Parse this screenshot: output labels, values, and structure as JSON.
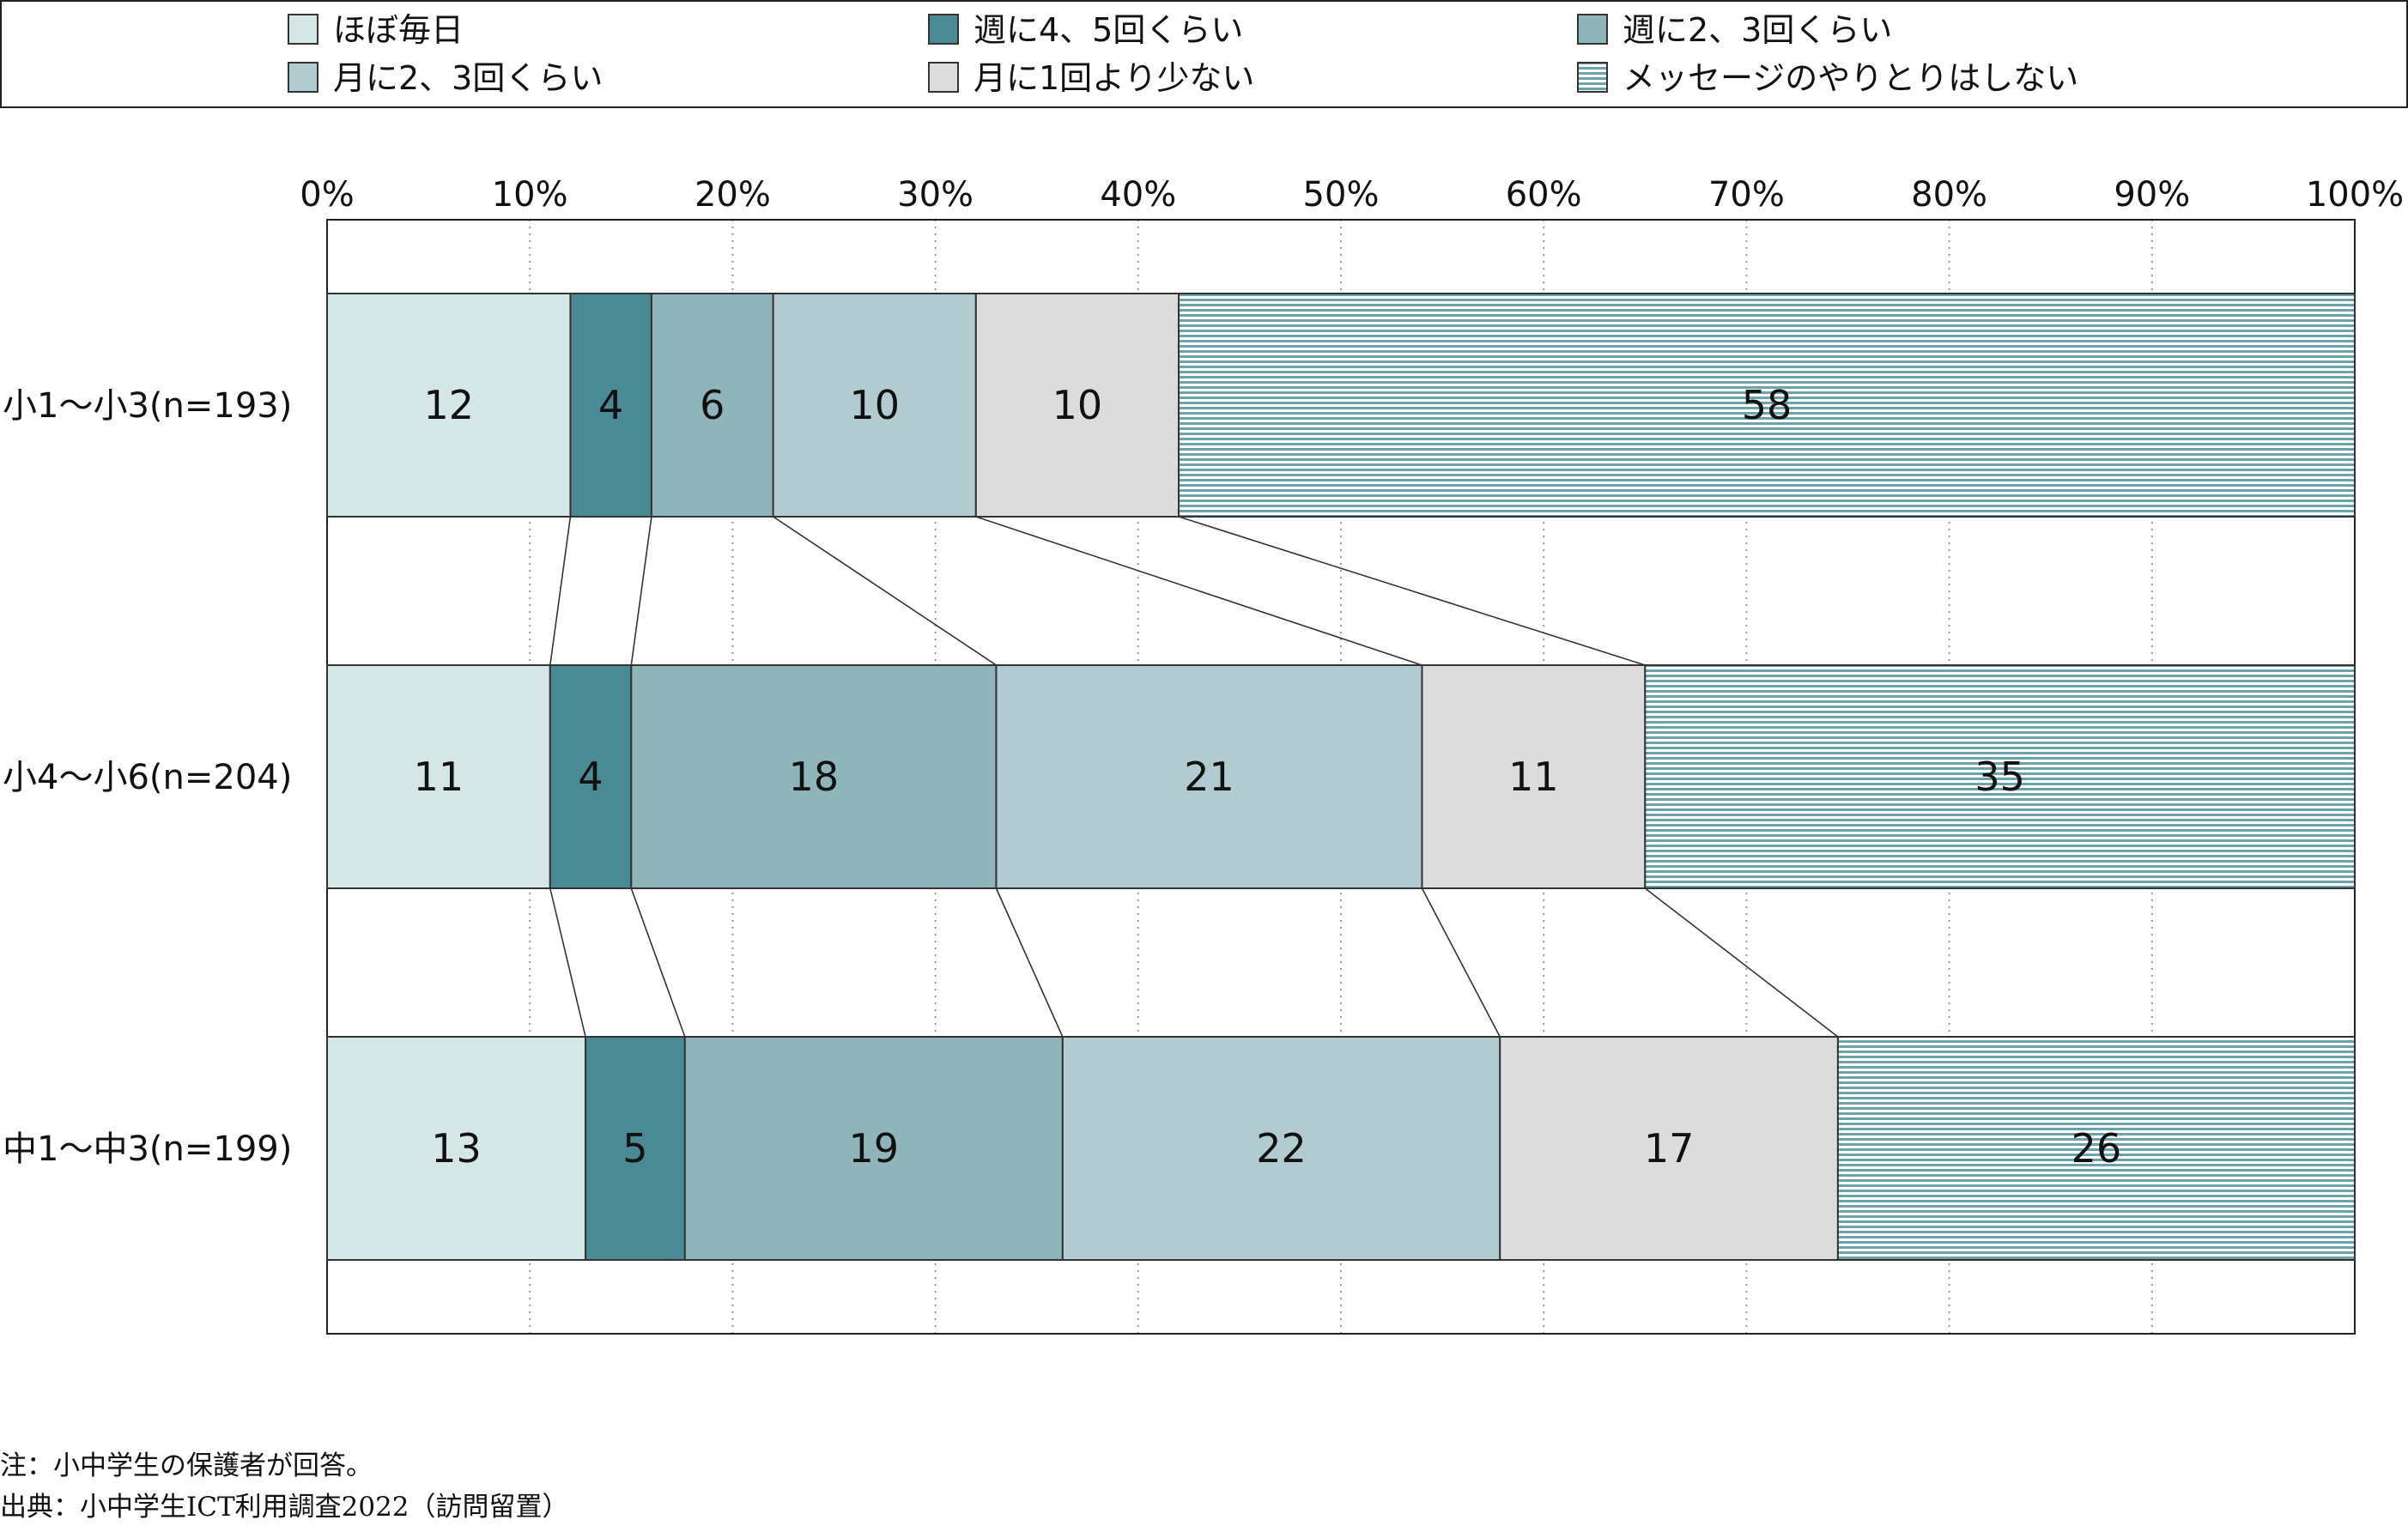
{
  "chart_data": {
    "type": "bar",
    "orientation": "horizontal",
    "stacked": "100%",
    "categories": [
      "小1～小3(n=193)",
      "小4～小6(n=204)",
      "中1～中3(n=199)"
    ],
    "series": [
      {
        "name": "ほぼ毎日",
        "values": [
          12,
          11,
          13
        ],
        "color": "#d5e6e7",
        "pattern": "none"
      },
      {
        "name": "週に4、5回くらい",
        "values": [
          4,
          4,
          5
        ],
        "color": "#4a8a95",
        "pattern": "none"
      },
      {
        "name": "週に2、3回くらい",
        "values": [
          6,
          18,
          19
        ],
        "color": "#8fb5ba",
        "pattern": "none"
      },
      {
        "name": "月に2、3回くらい",
        "values": [
          10,
          21,
          22
        ],
        "color": "#b1cbd0",
        "pattern": "none"
      },
      {
        "name": "月に1回より少ない",
        "values": [
          10,
          11,
          17
        ],
        "color": "#dcdcdc",
        "pattern": "none"
      },
      {
        "name": "メッセージのやりとりはしない",
        "values": [
          58,
          35,
          26
        ],
        "color": "#7fb0b5",
        "pattern": "horizontal-stripes"
      }
    ],
    "xlim": [
      0,
      100
    ],
    "xticks": [
      "0%",
      "10%",
      "20%",
      "30%",
      "40%",
      "50%",
      "60%",
      "70%",
      "80%",
      "90%",
      "100%"
    ],
    "grid": "vertical-dotted",
    "legend": "top",
    "connector_lines": true
  },
  "notes": {
    "note": "注：小中学生の保護者が回答。",
    "source": "出典：小中学生ICT利用調査2022（訪問留置）"
  }
}
